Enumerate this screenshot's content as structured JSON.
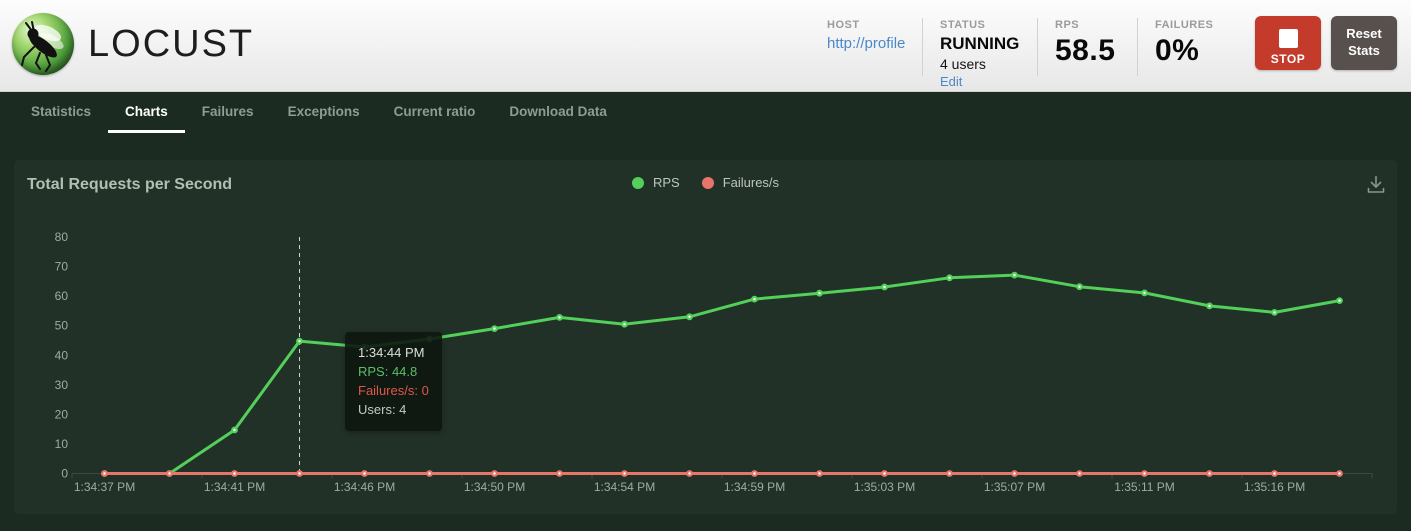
{
  "header": {
    "logo_text": "LOCUST",
    "host": {
      "label": "HOST",
      "value": "http://profile"
    },
    "status": {
      "label": "STATUS",
      "value": "RUNNING",
      "users": "4 users",
      "edit_label": "Edit"
    },
    "rps": {
      "label": "RPS",
      "value": "58.5"
    },
    "failures": {
      "label": "FAILURES",
      "value": "0%"
    },
    "stop_button_label": "STOP",
    "reset_button_label": "Reset Stats"
  },
  "nav": {
    "items": [
      {
        "label": "Statistics",
        "active": false
      },
      {
        "label": "Charts",
        "active": true
      },
      {
        "label": "Failures",
        "active": false
      },
      {
        "label": "Exceptions",
        "active": false
      },
      {
        "label": "Current ratio",
        "active": false
      },
      {
        "label": "Download Data",
        "active": false
      }
    ]
  },
  "colors": {
    "rps_line": "#52d05a",
    "failures_line": "#e8756a",
    "stop_button": "#c43b2b",
    "reset_button": "#57504d",
    "link_blue": "#4a88c7",
    "panel_bg": "#223127",
    "page_bg": "#1c2b21"
  },
  "chart_data": {
    "type": "line",
    "title": "Total Requests per Second",
    "x": [
      "1:34:37 PM",
      "1:34:39 PM",
      "1:34:41 PM",
      "1:34:44 PM",
      "1:34:46 PM",
      "1:34:48 PM",
      "1:34:50 PM",
      "1:34:52 PM",
      "1:34:54 PM",
      "1:34:57 PM",
      "1:34:59 PM",
      "1:35:01 PM",
      "1:35:03 PM",
      "1:35:05 PM",
      "1:35:07 PM",
      "1:35:09 PM",
      "1:35:11 PM",
      "1:35:14 PM",
      "1:35:16 PM",
      "1:35:18 PM"
    ],
    "x_label_every": 2,
    "ylim": [
      0,
      80
    ],
    "yticks": [
      0,
      10,
      20,
      30,
      40,
      50,
      60,
      70,
      80
    ],
    "grid": false,
    "legend_position": "top-center",
    "series": [
      {
        "name": "RPS",
        "color": "#52d05a",
        "values": [
          0,
          0,
          14.7,
          44.8,
          42.8,
          45.5,
          49.0,
          52.8,
          50.5,
          53.0,
          59.0,
          61.0,
          63.1,
          66.2,
          67.1,
          63.2,
          61.1,
          56.7,
          54.5,
          58.5
        ]
      },
      {
        "name": "Failures/s",
        "color": "#e8756a",
        "values": [
          0,
          0,
          0,
          0,
          0,
          0,
          0,
          0,
          0,
          0,
          0,
          0,
          0,
          0,
          0,
          0,
          0,
          0,
          0,
          0
        ]
      }
    ],
    "hover_index": 3,
    "tooltip": {
      "time": "1:34:44 PM",
      "lines": [
        {
          "text": "RPS: 44.8",
          "color": "#5abf63"
        },
        {
          "text": "Failures/s: 0",
          "color": "#e0564a"
        },
        {
          "text": "Users: 4",
          "color": "#c2cac3"
        }
      ]
    }
  }
}
